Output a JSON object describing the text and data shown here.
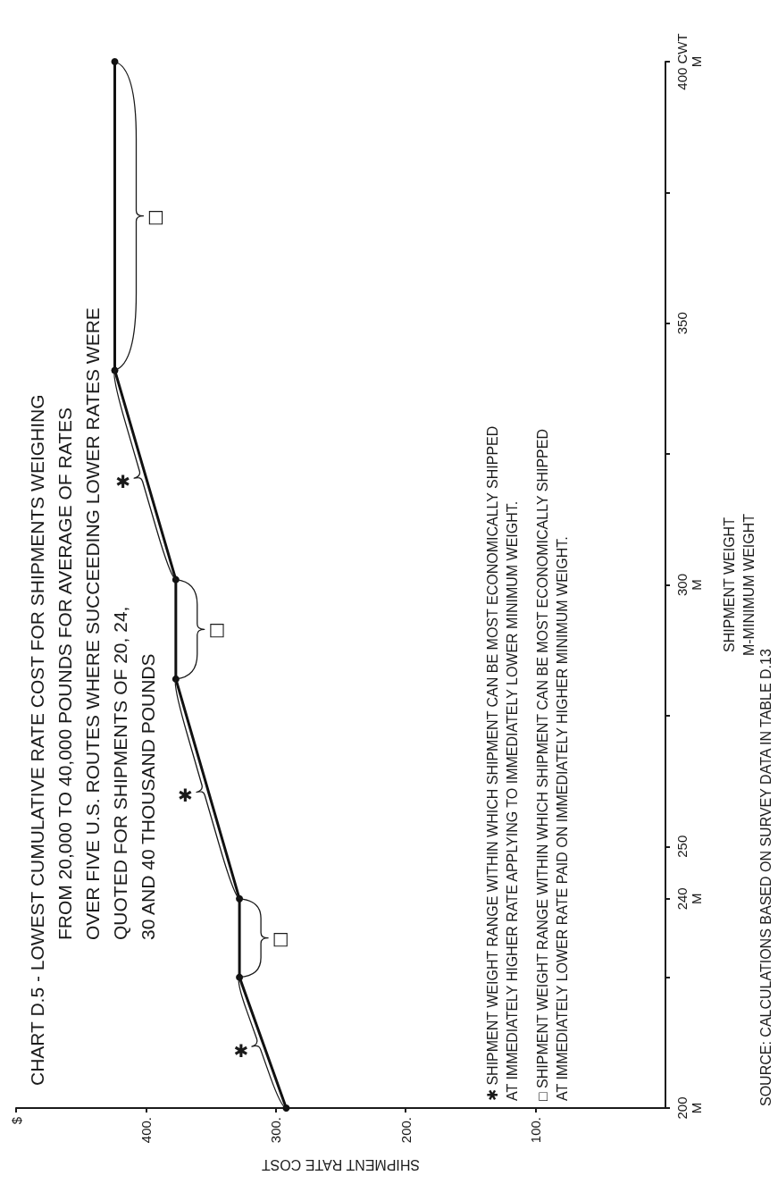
{
  "chart_data": {
    "type": "line",
    "title": "CHART D.5 - LOWEST CUMULATIVE RATE COST FOR SHIPMENTS WEIGHING\nFROM 20,000 TO 40,000 POUNDS FOR AVERAGE OF RATES\nOVER FIVE U.S. ROUTES WHERE SUCCEEDING LOWER RATES WERE\nQUOTED FOR SHIPMENTS OF 20, 24,\n30 AND 40 THOUSAND POUNDS",
    "xlabel": "SHIPMENT RATE COST",
    "ylabel": "SHIPMENT WEIGHT\nM-MINIMUM WEIGHT",
    "x": [
      292,
      328,
      328,
      377,
      377,
      424,
      424
    ],
    "series": [
      {
        "color": "#111111",
        "values": [
          200,
          225,
          240,
          282,
          301,
          341,
          400
        ]
      }
    ],
    "xlim": [
      500,
      0
    ],
    "xticks": [
      {
        "value": 100,
        "label": "100."
      },
      {
        "value": 200,
        "label": "200."
      },
      {
        "value": 300,
        "label": "300."
      },
      {
        "value": 400,
        "label": "400."
      },
      {
        "value": 500,
        "label": "$"
      }
    ],
    "ylim": [
      200,
      400
    ],
    "yticks": [
      {
        "value": 200,
        "label": "200\nM"
      },
      {
        "value": 225,
        "label": null
      },
      {
        "value": 240,
        "label": "240\nM"
      },
      250,
      {
        "value": 275,
        "label": null
      },
      {
        "value": 300,
        "label": "300\nM"
      },
      {
        "value": 325,
        "label": null
      },
      350,
      {
        "value": 375,
        "label": null
      },
      {
        "value": 400,
        "label": "400 CWT\nM"
      }
    ],
    "marker": "circle",
    "annotations": [
      "✱",
      "□",
      "✱",
      "□",
      "✱",
      "□",
      "✱ SHIPMENT WEIGHT RANGE WITHIN WHICH SHIPMENT CAN BE MOST ECONOMICALLY SHIPPED\nAT IMMEDIATELY HIGHER RATE APPLYING TO IMMEDIATELY LOWER MINIMUM WEIGHT.",
      "□ SHIPMENT WEIGHT RANGE WITHIN WHICH SHIPMENT CAN BE MOST ECONOMICALLY SHIPPED\nAT IMMEDIATELY LOWER RATE PAID ON IMMEDIATELY HIGHER MINIMUM WEIGHT.",
      "SOURCE: CALCULATIONS BASED ON SURVEY DATA IN TABLE D.13"
    ]
  }
}
